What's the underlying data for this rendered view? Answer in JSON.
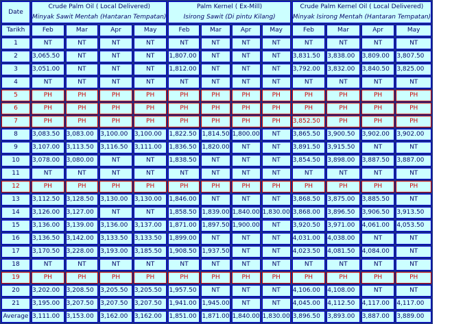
{
  "header": {
    "date_label": "Date",
    "tarikh_label": "Tarikh",
    "groups": [
      {
        "en": "Crude Palm Oil ( Local Delivered)",
        "ms": "Minyak Sawit Mentah (Hantaran Tempatan)"
      },
      {
        "en": "Palm Kernel ( Ex-Mill)",
        "ms": "Isirong Sawit (Di pintu Kilang)"
      },
      {
        "en": "Crude Palm Kernel Oil ( Local Delivered)",
        "ms": "Minyak Isirong Mentah (Hantaran Tempatan)"
      }
    ],
    "months": [
      "Feb",
      "Mar",
      "Apr",
      "May",
      "Feb",
      "Mar",
      "Apr",
      "May",
      "Feb",
      "Mar",
      "Apr",
      "May"
    ]
  },
  "rows": [
    {
      "day": "1",
      "vals": [
        "NT",
        "NT",
        "NT",
        "NT",
        "NT",
        "NT",
        "NT",
        "NT",
        "NT",
        "NT",
        "NT",
        "NT"
      ]
    },
    {
      "day": "2",
      "vals": [
        "3,065.50",
        "NT",
        "NT",
        "NT",
        "1,807.00",
        "NT",
        "NT",
        "NT",
        "3,831.50",
        "3,838.00",
        "3,809.00",
        "3,807.50"
      ]
    },
    {
      "day": "3",
      "vals": [
        "3,051.00",
        "NT",
        "NT",
        "NT",
        "1,812.00",
        "NT",
        "NT",
        "NT",
        "3,792.00",
        "3,832.00",
        "3,840.50",
        "3,825.00"
      ]
    },
    {
      "day": "4",
      "vals": [
        "NT",
        "NT",
        "NT",
        "NT",
        "NT",
        "NT",
        "NT",
        "NT",
        "NT",
        "NT",
        "NT",
        "NT"
      ]
    },
    {
      "day": "5",
      "vals": [
        "PH",
        "PH",
        "PH",
        "PH",
        "PH",
        "PH",
        "PH",
        "PH",
        "PH",
        "PH",
        "PH",
        "PH"
      ]
    },
    {
      "day": "6",
      "vals": [
        "PH",
        "PH",
        "PH",
        "PH",
        "PH",
        "PH",
        "PH",
        "PH",
        "PH",
        "PH",
        "PH",
        "PH"
      ]
    },
    {
      "day": "7",
      "vals": [
        "PH",
        "PH",
        "PH",
        "PH",
        "PH",
        "PH",
        "PH",
        "PH",
        "3,852.50",
        "PH",
        "PH",
        "PH"
      ]
    },
    {
      "day": "8",
      "vals": [
        "3,083.50",
        "3,083.00",
        "3,100.00",
        "3,100.00",
        "1,822.50",
        "1,814.50",
        "1,800.00",
        "NT",
        "3,865.50",
        "3,900.50",
        "3,902.00",
        "3,902.00"
      ]
    },
    {
      "day": "9",
      "vals": [
        "3,107.00",
        "3,113.50",
        "3,116.50",
        "3,111.00",
        "1,836.50",
        "1,820.00",
        "NT",
        "NT",
        "3,891.50",
        "3,915.50",
        "NT",
        "NT"
      ]
    },
    {
      "day": "10",
      "vals": [
        "3,078.00",
        "3,080.00",
        "NT",
        "NT",
        "1,838.50",
        "NT",
        "NT",
        "NT",
        "3,854.50",
        "3,898.00",
        "3,887.50",
        "3,887.00"
      ]
    },
    {
      "day": "11",
      "vals": [
        "NT",
        "NT",
        "NT",
        "NT",
        "NT",
        "NT",
        "NT",
        "NT",
        "NT",
        "NT",
        "NT",
        "NT"
      ]
    },
    {
      "day": "12",
      "vals": [
        "PH",
        "PH",
        "PH",
        "PH",
        "PH",
        "PH",
        "PH",
        "PH",
        "PH",
        "PH",
        "PH",
        "PH"
      ]
    },
    {
      "day": "13",
      "vals": [
        "3,112.50",
        "3,128.50",
        "3,130.00",
        "3,130.00",
        "1,846.00",
        "NT",
        "NT",
        "NT",
        "3,868.50",
        "3,875.00",
        "3,885.50",
        "NT"
      ]
    },
    {
      "day": "14",
      "vals": [
        "3,126.00",
        "3,127.00",
        "NT",
        "NT",
        "1,858.50",
        "1,839.00",
        "1,840.00",
        "1,830.00",
        "3,868.00",
        "3,896.50",
        "3,906.50",
        "3,913.50"
      ]
    },
    {
      "day": "15",
      "vals": [
        "3,136.00",
        "3,139.00",
        "3,136.00",
        "3,137.00",
        "1,871.00",
        "1,897.50",
        "1,900.00",
        "NT",
        "3,920.50",
        "3,971.00",
        "4,061.00",
        "4,053.50"
      ]
    },
    {
      "day": "16",
      "vals": [
        "3,136.50",
        "3,142.00",
        "3,133.50",
        "3,133.50",
        "1,899.00",
        "NT",
        "NT",
        "NT",
        "4,031.00",
        "4,038.00",
        "NT",
        "NT"
      ]
    },
    {
      "day": "17",
      "vals": [
        "3,170.50",
        "3,228.00",
        "3,193.00",
        "3,185.50",
        "1,908.50",
        "1,937.50",
        "NT",
        "NT",
        "4,023.50",
        "4,081.50",
        "4,084.00",
        "NT"
      ]
    },
    {
      "day": "18",
      "vals": [
        "NT",
        "NT",
        "NT",
        "NT",
        "NT",
        "NT",
        "NT",
        "NT",
        "NT",
        "NT",
        "NT",
        "NT"
      ]
    },
    {
      "day": "19",
      "vals": [
        "PH",
        "PH",
        "PH",
        "PH",
        "PH",
        "PH",
        "PH",
        "PH",
        "PH",
        "PH",
        "PH",
        "PH"
      ]
    },
    {
      "day": "20",
      "vals": [
        "3,202.00",
        "3,208.50",
        "3,205.50",
        "3,205.50",
        "1,957.50",
        "NT",
        "NT",
        "NT",
        "4,106.00",
        "4,108.00",
        "NT",
        "NT"
      ]
    },
    {
      "day": "21",
      "vals": [
        "3,195.00",
        "3,207.50",
        "3,207.50",
        "3,207.50",
        "1,941.00",
        "1,945.00",
        "NT",
        "NT",
        "4,045.00",
        "4,112.50",
        "4,117.00",
        "4,117.00"
      ]
    },
    {
      "day": "Average",
      "vals": [
        "3,111.00",
        "3,153.00",
        "3,162.00",
        "3,162.00",
        "1,851.00",
        "1,871.00",
        "1,840.00",
        "1,830.00",
        "3,896.50",
        "3,893.00",
        "3,887.00",
        "3,889.00"
      ]
    }
  ],
  "style": {
    "background": "#ccffff",
    "border": "#0000cc",
    "holiday_color": "#cc0000",
    "text_color": "#000066"
  }
}
